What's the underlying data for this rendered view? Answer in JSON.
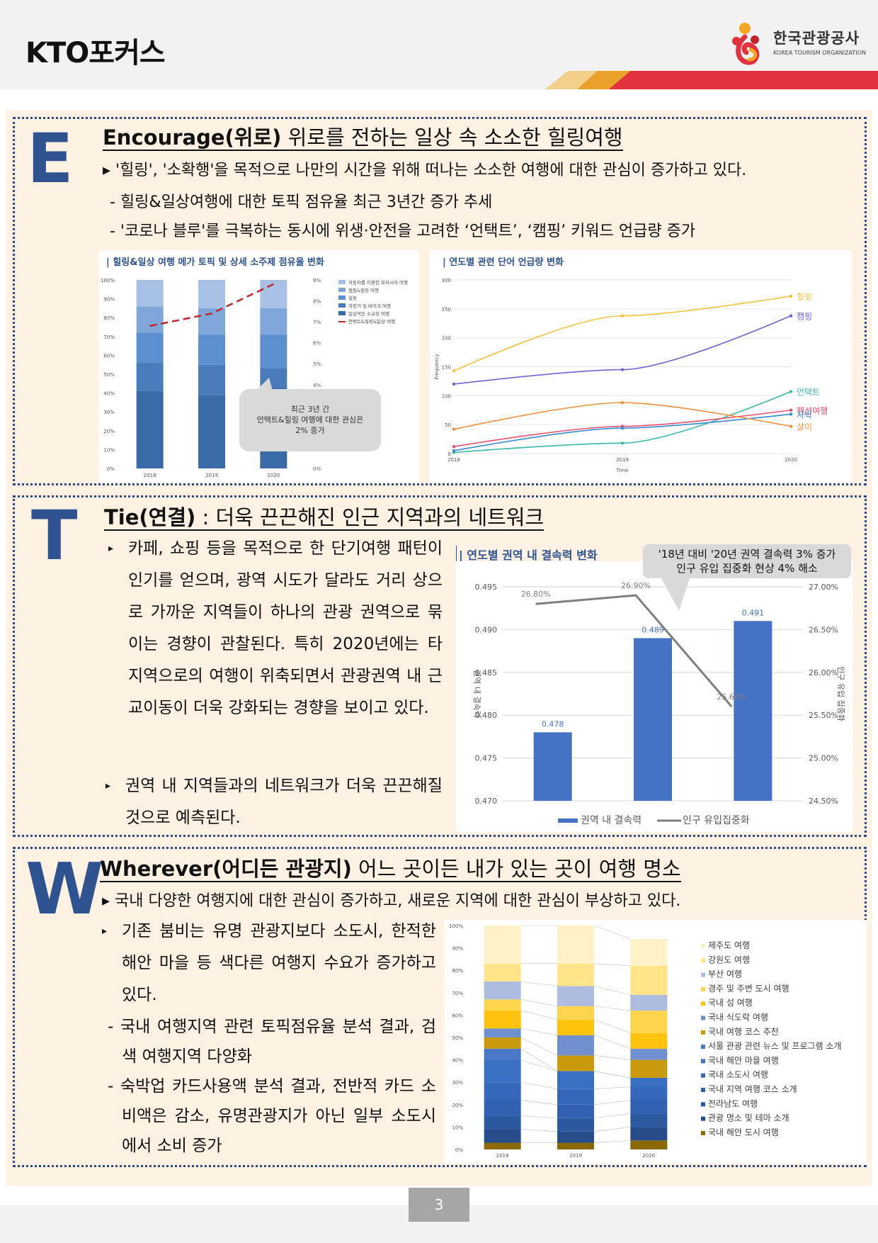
{
  "header": {
    "title": "KTO포커스",
    "logo_name": "한국관광공사",
    "logo_sub": "KOREA TOURISM ORGANIZATION"
  },
  "section_e": {
    "letter": "E",
    "title_bold": "Encourage(위로)",
    "title_rest": " 위로를 전하는 일상 속 소소한 힐링여행",
    "bullet1": "▸ '힐링', '소확행'을 목적으로 나만의 시간을 위해 떠나는 소소한 여행에 대한 관심이 증가하고 있다.",
    "sub1": "- 힐링&일상여행에 대한 토픽 점유율 최근 3년간 증가 추세",
    "sub2": "- '코로나 블루'를 극복하는 동시에 위생·안전을 고려한 ‘언택트’, ‘캠핑’ 키워드 언급량 증가",
    "chart1_title": "| 힐링&일상 여행 메가 토픽 및 상세 소주제 점유율 변화",
    "chart2_title": "| 연도별 관련 단어 언급량 변화"
  },
  "section_t": {
    "letter": "T",
    "title_bold": "Tie(연결)",
    "title_rest": " : 더욱 끈끈해진 인근 지역과의 네트워크",
    "para1": "카페, 쇼핑 등을 목적으로 한 단기여행 패턴이 인기를 얻으며, 광역 시도가 달라도 거리 상으로 가까운 지역들이 하나의 관광 권역으로 묶이는 경향이 관찰된다. 특히 2020년에는 타 지역으로의 여행이 위축되면서 관광권역 내 근교이동이 더욱 강화되는 경향을 보이고 있다.",
    "para2": "권역 내 지역들과의 네트워크가 더욱 끈끈해질 것으로 예측된다.",
    "chart_title": "| 연도별 권역 내 결속력 변화",
    "callout_line1": "'18년 대비 '20년 권역 결속력 3% 증가",
    "callout_line2": "인구 유입 집중화 현상 4% 해소"
  },
  "section_w": {
    "letter": "W",
    "title_bold": "Wherever(어디든 관광지)",
    "title_rest": " 어느 곳이든 내가 있는 곳이 여행 명소",
    "bullet1": "▸ 국내 다양한 여행지에 대한 관심이 증가하고, 새로운 지역에 대한 관심이 부상하고 있다.",
    "para1": "기존 붐비는 유명 관광지보다 소도시, 한적한 해안 마을 등 색다른 여행지 수요가 증가하고 있다.",
    "sub1": "- 국내 여행지역 관련 토픽점유율 분석 결과, 검색 여행지역 다양화",
    "sub2": "- 숙박업 카드사용액 분석 결과, 전반적 카드 소비액은 감소, 유명관광지가 아닌 일부 소도시에서 소비 증가"
  },
  "chart_data": [
    {
      "type": "bar",
      "title": "힐링&일상 여행 메가 토픽 및 상세 소주제 점유율 변화",
      "categories": [
        "2018",
        "2019",
        "2020"
      ],
      "ylim": [
        0,
        100
      ],
      "y_ticks": [
        "0%",
        "10%",
        "20%",
        "30%",
        "40%",
        "50%",
        "60%",
        "70%",
        "80%",
        "90%",
        "100%"
      ],
      "y2_ticks": [
        "0%",
        "1%",
        "2%",
        "3%",
        "4%",
        "5%",
        "6%",
        "7%",
        "8%",
        "9%"
      ],
      "series": [
        {
          "name": "자동차를 이용한 유라시아 여행",
          "values": [
            14,
            15,
            15
          ],
          "color": "#a8c0e6"
        },
        {
          "name": "캠핑&힐링 여행",
          "values": [
            14,
            14,
            14
          ],
          "color": "#7fa7da"
        },
        {
          "name": "힐링",
          "values": [
            16,
            16,
            18
          ],
          "color": "#5b8fcf"
        },
        {
          "name": "자전거 및 바이크 여행",
          "values": [
            15,
            16,
            10
          ],
          "color": "#4a7cbc"
        },
        {
          "name": "일상적인 소규모 여행",
          "values": [
            41,
            39,
            43
          ],
          "color": "#3a6aa8"
        }
      ],
      "line_series": {
        "name": "언택트&힐링&일상 여행",
        "values": [
          6.8,
          7.4,
          8.8
        ],
        "color": "#c0262d"
      },
      "callout": [
        "최근 3년 간",
        "언택트&힐링 여행에 대한 관심은",
        "2% 증가"
      ]
    },
    {
      "type": "line",
      "title": "연도별 관련 단어 언급량 변화",
      "x": [
        "2018",
        "2019",
        "2020"
      ],
      "xlabel": "Time",
      "ylabel": "Frequency",
      "ylim": [
        0,
        300
      ],
      "y_ticks": [
        "0",
        "50",
        "100",
        "150",
        "200",
        "250",
        "300"
      ],
      "series": [
        {
          "name": "힐링",
          "values": [
            143,
            238,
            272
          ],
          "color": "#f2c13d"
        },
        {
          "name": "캠핑",
          "values": [
            120,
            145,
            238
          ],
          "color": "#7561d6"
        },
        {
          "name": "언택트",
          "values": [
            2,
            18,
            107
          ],
          "color": "#3bb8a8"
        },
        {
          "name": "펜션여행",
          "values": [
            12,
            47,
            75
          ],
          "color": "#ea4f6f"
        },
        {
          "name": "차박",
          "values": [
            5,
            44,
            68
          ],
          "color": "#3a8ad8"
        },
        {
          "name": "살이",
          "values": [
            42,
            88,
            47
          ],
          "color": "#f29040"
        }
      ]
    },
    {
      "type": "bar",
      "title": "연도별 권역 내 결속력 변화",
      "categories": [
        "",
        "",
        ""
      ],
      "ylabel": "권역 내 결속력",
      "y2label": "인구 유입 집중화",
      "ylim": [
        0.47,
        0.495
      ],
      "y_ticks": [
        "0.470",
        "0.475",
        "0.480",
        "0.485",
        "0.490",
        "0.495"
      ],
      "y2_ticks": [
        "24.50%",
        "25.00%",
        "25.50%",
        "26.00%",
        "26.50%",
        "27.00%"
      ],
      "series": [
        {
          "name": "권역 내 결속력",
          "values": [
            0.478,
            0.489,
            0.491
          ],
          "labels": [
            "0.478",
            "0.489",
            "0.491"
          ],
          "color": "#4472c4"
        }
      ],
      "line_series": {
        "name": "인구 유입집중화",
        "values": [
          26.8,
          26.9,
          25.6
        ],
        "labels": [
          "26.80%",
          "26.90%",
          "25.60%"
        ],
        "color": "#7f7f7f"
      }
    },
    {
      "type": "bar",
      "title": "국내 여행지역 관련 토픽점유율",
      "categories": [
        "2018",
        "2019",
        "2020"
      ],
      "ylim": [
        0,
        100
      ],
      "y_ticks": [
        "0%",
        "10%",
        "20%",
        "30%",
        "40%",
        "50%",
        "60%",
        "70%",
        "80%",
        "90%",
        "100%"
      ],
      "series": [
        {
          "name": "국내 해안 도시 여행",
          "values": [
            3,
            3,
            4
          ],
          "color": "#8a6a00"
        },
        {
          "name": "관광 명소 및 테마 소개",
          "values": [
            6,
            5,
            6
          ],
          "color": "#274c8c"
        },
        {
          "name": "전라남도 여행",
          "values": [
            6,
            6,
            6
          ],
          "color": "#2c58a0"
        },
        {
          "name": "국내 지역 여행 코스 소개",
          "values": [
            7,
            6,
            6
          ],
          "color": "#3161b0"
        },
        {
          "name": "국내 소도시 여행",
          "values": [
            8,
            7,
            6
          ],
          "color": "#3568bb"
        },
        {
          "name": "국내 해안 마을 여행",
          "values": [
            10,
            8,
            4
          ],
          "color": "#3a70c4"
        },
        {
          "name": "서울 관광 관련 뉴스 및 프로그램 소개",
          "values": [
            5,
            0,
            0
          ],
          "color": "#4a78c7"
        },
        {
          "name": "국내 여행 코스 추천",
          "values": [
            5,
            7,
            8
          ],
          "color": "#c99a0e"
        },
        {
          "name": "국내 식도락 여행",
          "values": [
            4,
            9,
            5
          ],
          "color": "#6f8fcf"
        },
        {
          "name": "국내 섬 여행",
          "values": [
            8,
            7,
            7
          ],
          "color": "#ffc20e"
        },
        {
          "name": "경주 및 주변 도시 여행",
          "values": [
            5,
            6,
            10
          ],
          "color": "#ffd54f"
        },
        {
          "name": "부산 여행",
          "values": [
            8,
            9,
            7
          ],
          "color": "#aebce0"
        },
        {
          "name": "강원도 여행",
          "values": [
            8,
            10,
            13
          ],
          "color": "#ffe48a"
        },
        {
          "name": "제주도 여행",
          "values": [
            17,
            17,
            12
          ],
          "color": "#fff2c8"
        }
      ]
    }
  ],
  "footer": {
    "page_number": "3"
  }
}
